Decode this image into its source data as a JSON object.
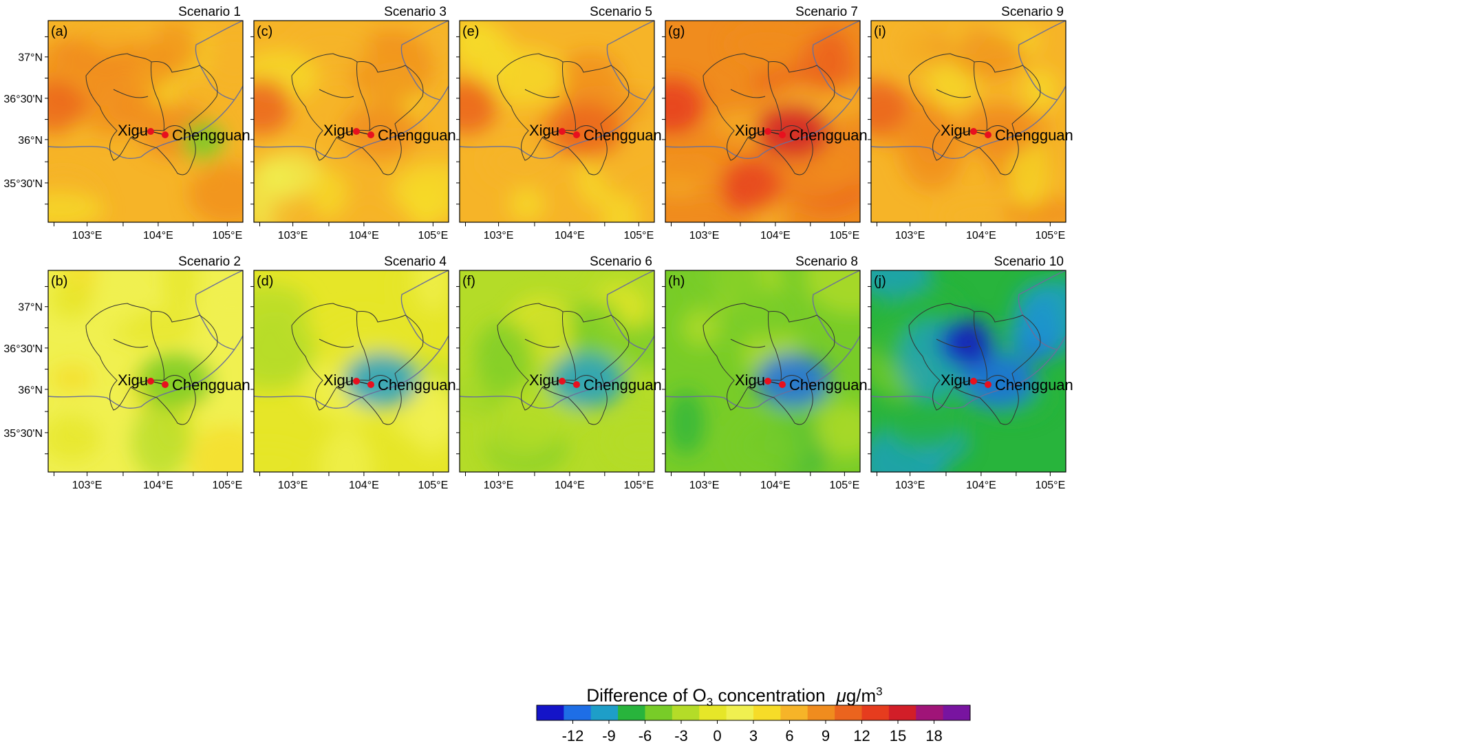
{
  "panels": [
    {
      "letter": "(a)",
      "title": "Scenario 1",
      "row": 0,
      "col": 0,
      "mean": 6.0,
      "hotspot": 8,
      "hotspot_sign": "mixed"
    },
    {
      "letter": "(c)",
      "title": "Scenario 3",
      "row": 0,
      "col": 1,
      "mean": 5.0,
      "hotspot": 7,
      "hotspot_sign": "pos"
    },
    {
      "letter": "(e)",
      "title": "Scenario 5",
      "row": 0,
      "col": 2,
      "mean": 6.0,
      "hotspot": 9,
      "hotspot_sign": "pos"
    },
    {
      "letter": "(g)",
      "title": "Scenario 7",
      "row": 0,
      "col": 3,
      "mean": 7.5,
      "hotspot": 14,
      "hotspot_sign": "pos"
    },
    {
      "letter": "(i)",
      "title": "Scenario 9",
      "row": 0,
      "col": 4,
      "mean": 6.0,
      "hotspot": 8,
      "hotspot_sign": "pos"
    },
    {
      "letter": "(b)",
      "title": "Scenario 2",
      "row": 1,
      "col": 0,
      "mean": 1.5,
      "hotspot": -3,
      "hotspot_sign": "neg"
    },
    {
      "letter": "(d)",
      "title": "Scenario 4",
      "row": 1,
      "col": 1,
      "mean": 0.5,
      "hotspot": -7,
      "hotspot_sign": "neg"
    },
    {
      "letter": "(f)",
      "title": "Scenario 6",
      "row": 1,
      "col": 2,
      "mean": -1.5,
      "hotspot": -7,
      "hotspot_sign": "neg"
    },
    {
      "letter": "(h)",
      "title": "Scenario 8",
      "row": 1,
      "col": 3,
      "mean": -4.0,
      "hotspot": -9,
      "hotspot_sign": "neg"
    },
    {
      "letter": "(j)",
      "title": "Scenario 10",
      "row": 1,
      "col": 4,
      "mean": -6.0,
      "hotspot": -10,
      "hotspot_sign": "neg"
    }
  ],
  "axes": {
    "lat_ticks": [
      "37°N",
      "36°30'N",
      "36°N",
      "35°30'N"
    ],
    "lon_ticks": [
      "103°E",
      "104°E",
      "105°E"
    ]
  },
  "places": {
    "west": "Xigu",
    "east": "Chengguan"
  },
  "colorbar": {
    "title": "Difference of O",
    "title_subscript": "3",
    "title_suffix": " concentration",
    "unit_mu": "μ",
    "unit_base": "g/m",
    "unit_sup": "3",
    "tick_labels": [
      "-12",
      "-9",
      "-6",
      "-3",
      "0",
      "3",
      "6",
      "9",
      "12",
      "15",
      "18"
    ],
    "colors": [
      "#1414c8",
      "#1e6ee6",
      "#1e9ec8",
      "#28b43c",
      "#78cc28",
      "#b4dc28",
      "#e6e628",
      "#f0f050",
      "#f6dc28",
      "#f6b428",
      "#f08c1e",
      "#eb641e",
      "#e63c1e",
      "#d21e28",
      "#a01478",
      "#7814a0"
    ]
  }
}
